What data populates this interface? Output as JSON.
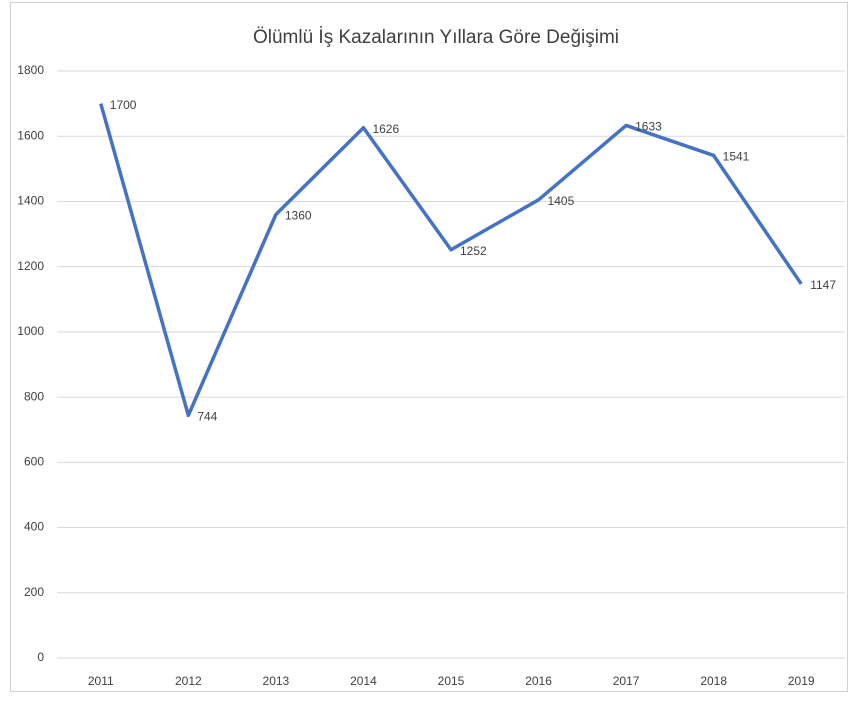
{
  "chart_data": {
    "type": "line",
    "title": "Ölümlü İş Kazalarının Yıllara Göre Değişimi",
    "categories": [
      "2011",
      "2012",
      "2013",
      "2014",
      "2015",
      "2016",
      "2017",
      "2018",
      "2019"
    ],
    "values": [
      1700,
      744,
      1360,
      1626,
      1252,
      1405,
      1633,
      1541,
      1147
    ],
    "color": "#4472c4",
    "ylim": [
      0,
      1800
    ],
    "yticks": [
      0,
      200,
      400,
      600,
      800,
      1000,
      1200,
      1400,
      1600,
      1800
    ],
    "grid": true
  }
}
